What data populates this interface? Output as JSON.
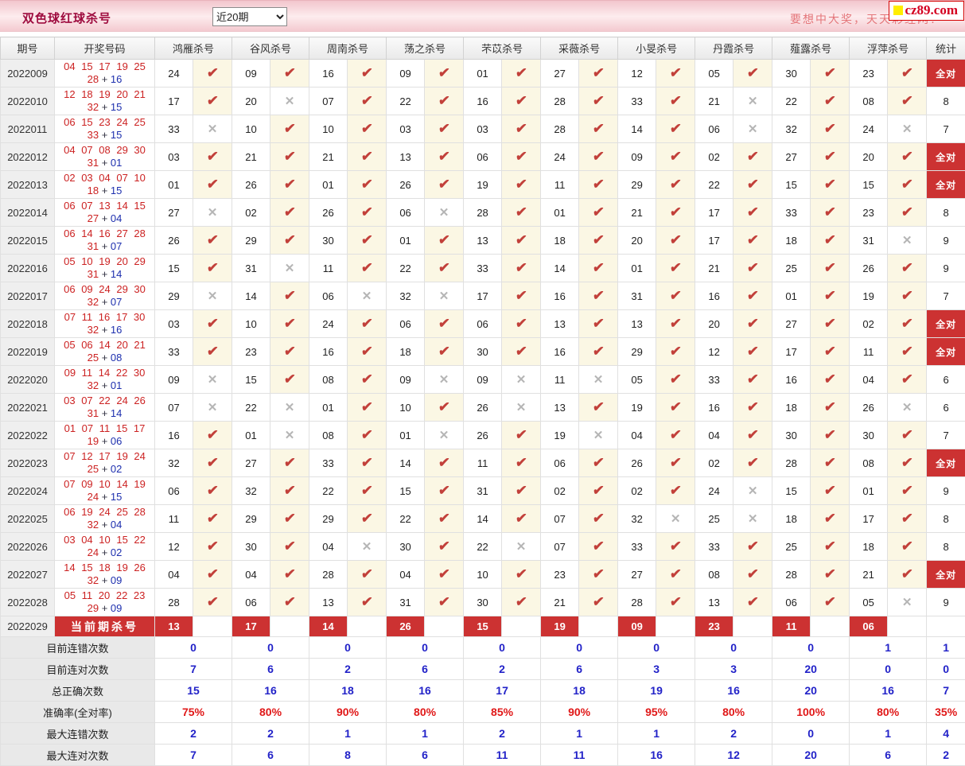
{
  "header_bar": {
    "title": "双色球红球杀号",
    "range_value": "近20期",
    "promo": "要想中大奖，天天彩经网！",
    "logo_text": "cz89.com"
  },
  "icons": {
    "check": "✔",
    "cross": "✕",
    "logo_square": "square"
  },
  "colors": {
    "accent_red": "#cc3232",
    "check": "#c2403a",
    "cross": "#b5b5b5",
    "red_ball": "#cc2222",
    "blue_ball": "#1d2fae",
    "summary_blue": "#2222c8",
    "summary_red": "#e01818"
  },
  "table": {
    "col_headers": {
      "period": "期号",
      "drawn": "开奖号码",
      "stat": "统计"
    },
    "predictors": [
      "鸿雁杀号",
      "谷风杀号",
      "周南杀号",
      "荡之杀号",
      "芣苡杀号",
      "采薇杀号",
      "小旻杀号",
      "丹霞杀号",
      "薤露杀号",
      "浮萍杀号"
    ],
    "all_correct_label": "全对",
    "rows": [
      {
        "period": "2022009",
        "reds": [
          "04",
          "15",
          "17",
          "19",
          "25",
          "28"
        ],
        "blue": "16",
        "kills": [
          [
            "24",
            1
          ],
          [
            "09",
            1
          ],
          [
            "16",
            1
          ],
          [
            "09",
            1
          ],
          [
            "01",
            1
          ],
          [
            "27",
            1
          ],
          [
            "12",
            1
          ],
          [
            "05",
            1
          ],
          [
            "30",
            1
          ],
          [
            "23",
            1
          ]
        ],
        "stat": "全对"
      },
      {
        "period": "2022010",
        "reds": [
          "12",
          "18",
          "19",
          "20",
          "21",
          "32"
        ],
        "blue": "15",
        "kills": [
          [
            "17",
            1
          ],
          [
            "20",
            0
          ],
          [
            "07",
            1
          ],
          [
            "22",
            1
          ],
          [
            "16",
            1
          ],
          [
            "28",
            1
          ],
          [
            "33",
            1
          ],
          [
            "21",
            0
          ],
          [
            "22",
            1
          ],
          [
            "08",
            1
          ]
        ],
        "stat": "8"
      },
      {
        "period": "2022011",
        "reds": [
          "06",
          "15",
          "23",
          "24",
          "25",
          "33"
        ],
        "blue": "15",
        "kills": [
          [
            "33",
            0
          ],
          [
            "10",
            1
          ],
          [
            "10",
            1
          ],
          [
            "03",
            1
          ],
          [
            "03",
            1
          ],
          [
            "28",
            1
          ],
          [
            "14",
            1
          ],
          [
            "06",
            0
          ],
          [
            "32",
            1
          ],
          [
            "24",
            0
          ]
        ],
        "stat": "7"
      },
      {
        "period": "2022012",
        "reds": [
          "04",
          "07",
          "08",
          "29",
          "30",
          "31"
        ],
        "blue": "01",
        "kills": [
          [
            "03",
            1
          ],
          [
            "21",
            1
          ],
          [
            "21",
            1
          ],
          [
            "13",
            1
          ],
          [
            "06",
            1
          ],
          [
            "24",
            1
          ],
          [
            "09",
            1
          ],
          [
            "02",
            1
          ],
          [
            "27",
            1
          ],
          [
            "20",
            1
          ]
        ],
        "stat": "全对"
      },
      {
        "period": "2022013",
        "reds": [
          "02",
          "03",
          "04",
          "07",
          "10",
          "18"
        ],
        "blue": "15",
        "kills": [
          [
            "01",
            1
          ],
          [
            "26",
            1
          ],
          [
            "01",
            1
          ],
          [
            "26",
            1
          ],
          [
            "19",
            1
          ],
          [
            "11",
            1
          ],
          [
            "29",
            1
          ],
          [
            "22",
            1
          ],
          [
            "15",
            1
          ],
          [
            "15",
            1
          ]
        ],
        "stat": "全对"
      },
      {
        "period": "2022014",
        "reds": [
          "06",
          "07",
          "13",
          "14",
          "15",
          "27"
        ],
        "blue": "04",
        "kills": [
          [
            "27",
            0
          ],
          [
            "02",
            1
          ],
          [
            "26",
            1
          ],
          [
            "06",
            0
          ],
          [
            "28",
            1
          ],
          [
            "01",
            1
          ],
          [
            "21",
            1
          ],
          [
            "17",
            1
          ],
          [
            "33",
            1
          ],
          [
            "23",
            1
          ]
        ],
        "stat": "8"
      },
      {
        "period": "2022015",
        "reds": [
          "06",
          "14",
          "16",
          "27",
          "28",
          "31"
        ],
        "blue": "07",
        "kills": [
          [
            "26",
            1
          ],
          [
            "29",
            1
          ],
          [
            "30",
            1
          ],
          [
            "01",
            1
          ],
          [
            "13",
            1
          ],
          [
            "18",
            1
          ],
          [
            "20",
            1
          ],
          [
            "17",
            1
          ],
          [
            "18",
            1
          ],
          [
            "31",
            0
          ]
        ],
        "stat": "9"
      },
      {
        "period": "2022016",
        "reds": [
          "05",
          "10",
          "19",
          "20",
          "29",
          "31"
        ],
        "blue": "14",
        "kills": [
          [
            "15",
            1
          ],
          [
            "31",
            0
          ],
          [
            "11",
            1
          ],
          [
            "22",
            1
          ],
          [
            "33",
            1
          ],
          [
            "14",
            1
          ],
          [
            "01",
            1
          ],
          [
            "21",
            1
          ],
          [
            "25",
            1
          ],
          [
            "26",
            1
          ]
        ],
        "stat": "9"
      },
      {
        "period": "2022017",
        "reds": [
          "06",
          "09",
          "24",
          "29",
          "30",
          "32"
        ],
        "blue": "07",
        "kills": [
          [
            "29",
            0
          ],
          [
            "14",
            1
          ],
          [
            "06",
            0
          ],
          [
            "32",
            0
          ],
          [
            "17",
            1
          ],
          [
            "16",
            1
          ],
          [
            "31",
            1
          ],
          [
            "16",
            1
          ],
          [
            "01",
            1
          ],
          [
            "19",
            1
          ]
        ],
        "stat": "7"
      },
      {
        "period": "2022018",
        "reds": [
          "07",
          "11",
          "16",
          "17",
          "30",
          "32"
        ],
        "blue": "16",
        "kills": [
          [
            "03",
            1
          ],
          [
            "10",
            1
          ],
          [
            "24",
            1
          ],
          [
            "06",
            1
          ],
          [
            "06",
            1
          ],
          [
            "13",
            1
          ],
          [
            "13",
            1
          ],
          [
            "20",
            1
          ],
          [
            "27",
            1
          ],
          [
            "02",
            1
          ]
        ],
        "stat": "全对"
      },
      {
        "period": "2022019",
        "reds": [
          "05",
          "06",
          "14",
          "20",
          "21",
          "25"
        ],
        "blue": "08",
        "kills": [
          [
            "33",
            1
          ],
          [
            "23",
            1
          ],
          [
            "16",
            1
          ],
          [
            "18",
            1
          ],
          [
            "30",
            1
          ],
          [
            "16",
            1
          ],
          [
            "29",
            1
          ],
          [
            "12",
            1
          ],
          [
            "17",
            1
          ],
          [
            "11",
            1
          ]
        ],
        "stat": "全对"
      },
      {
        "period": "2022020",
        "reds": [
          "09",
          "11",
          "14",
          "22",
          "30",
          "32"
        ],
        "blue": "01",
        "kills": [
          [
            "09",
            0
          ],
          [
            "15",
            1
          ],
          [
            "08",
            1
          ],
          [
            "09",
            0
          ],
          [
            "09",
            0
          ],
          [
            "11",
            0
          ],
          [
            "05",
            1
          ],
          [
            "33",
            1
          ],
          [
            "16",
            1
          ],
          [
            "04",
            1
          ]
        ],
        "stat": "6"
      },
      {
        "period": "2022021",
        "reds": [
          "03",
          "07",
          "22",
          "24",
          "26",
          "31"
        ],
        "blue": "14",
        "kills": [
          [
            "07",
            0
          ],
          [
            "22",
            0
          ],
          [
            "01",
            1
          ],
          [
            "10",
            1
          ],
          [
            "26",
            0
          ],
          [
            "13",
            1
          ],
          [
            "19",
            1
          ],
          [
            "16",
            1
          ],
          [
            "18",
            1
          ],
          [
            "26",
            0
          ]
        ],
        "stat": "6"
      },
      {
        "period": "2022022",
        "reds": [
          "01",
          "07",
          "11",
          "15",
          "17",
          "19"
        ],
        "blue": "06",
        "kills": [
          [
            "16",
            1
          ],
          [
            "01",
            0
          ],
          [
            "08",
            1
          ],
          [
            "01",
            0
          ],
          [
            "26",
            1
          ],
          [
            "19",
            0
          ],
          [
            "04",
            1
          ],
          [
            "04",
            1
          ],
          [
            "30",
            1
          ],
          [
            "30",
            1
          ]
        ],
        "stat": "7"
      },
      {
        "period": "2022023",
        "reds": [
          "07",
          "12",
          "17",
          "19",
          "24",
          "25"
        ],
        "blue": "02",
        "kills": [
          [
            "32",
            1
          ],
          [
            "27",
            1
          ],
          [
            "33",
            1
          ],
          [
            "14",
            1
          ],
          [
            "11",
            1
          ],
          [
            "06",
            1
          ],
          [
            "26",
            1
          ],
          [
            "02",
            1
          ],
          [
            "28",
            1
          ],
          [
            "08",
            1
          ]
        ],
        "stat": "全对"
      },
      {
        "period": "2022024",
        "reds": [
          "07",
          "09",
          "10",
          "14",
          "19",
          "24"
        ],
        "blue": "15",
        "kills": [
          [
            "06",
            1
          ],
          [
            "32",
            1
          ],
          [
            "22",
            1
          ],
          [
            "15",
            1
          ],
          [
            "31",
            1
          ],
          [
            "02",
            1
          ],
          [
            "02",
            1
          ],
          [
            "24",
            0
          ],
          [
            "15",
            1
          ],
          [
            "01",
            1
          ]
        ],
        "stat": "9"
      },
      {
        "period": "2022025",
        "reds": [
          "06",
          "19",
          "24",
          "25",
          "28",
          "32"
        ],
        "blue": "04",
        "kills": [
          [
            "11",
            1
          ],
          [
            "29",
            1
          ],
          [
            "29",
            1
          ],
          [
            "22",
            1
          ],
          [
            "14",
            1
          ],
          [
            "07",
            1
          ],
          [
            "32",
            0
          ],
          [
            "25",
            0
          ],
          [
            "18",
            1
          ],
          [
            "17",
            1
          ]
        ],
        "stat": "8"
      },
      {
        "period": "2022026",
        "reds": [
          "03",
          "04",
          "10",
          "15",
          "22",
          "24"
        ],
        "blue": "02",
        "kills": [
          [
            "12",
            1
          ],
          [
            "30",
            1
          ],
          [
            "04",
            0
          ],
          [
            "30",
            1
          ],
          [
            "22",
            0
          ],
          [
            "07",
            1
          ],
          [
            "33",
            1
          ],
          [
            "33",
            1
          ],
          [
            "25",
            1
          ],
          [
            "18",
            1
          ]
        ],
        "stat": "8"
      },
      {
        "period": "2022027",
        "reds": [
          "14",
          "15",
          "18",
          "19",
          "26",
          "32"
        ],
        "blue": "09",
        "kills": [
          [
            "04",
            1
          ],
          [
            "04",
            1
          ],
          [
            "28",
            1
          ],
          [
            "04",
            1
          ],
          [
            "10",
            1
          ],
          [
            "23",
            1
          ],
          [
            "27",
            1
          ],
          [
            "08",
            1
          ],
          [
            "28",
            1
          ],
          [
            "21",
            1
          ]
        ],
        "stat": "全对"
      },
      {
        "period": "2022028",
        "reds": [
          "05",
          "11",
          "20",
          "22",
          "23",
          "29"
        ],
        "blue": "09",
        "kills": [
          [
            "28",
            1
          ],
          [
            "06",
            1
          ],
          [
            "13",
            1
          ],
          [
            "31",
            1
          ],
          [
            "30",
            1
          ],
          [
            "21",
            1
          ],
          [
            "28",
            1
          ],
          [
            "13",
            1
          ],
          [
            "06",
            1
          ],
          [
            "05",
            0
          ]
        ],
        "stat": "9"
      }
    ],
    "current_row": {
      "period": "2022029",
      "label": "当前期杀号",
      "kills": [
        "13",
        "17",
        "14",
        "26",
        "15",
        "19",
        "09",
        "23",
        "11",
        "06"
      ]
    },
    "summary_rows": [
      {
        "label": "目前连错次数",
        "values": [
          "0",
          "0",
          "0",
          "0",
          "0",
          "0",
          "0",
          "0",
          "0",
          "1",
          "1"
        ],
        "style": "blue"
      },
      {
        "label": "目前连对次数",
        "values": [
          "7",
          "6",
          "2",
          "6",
          "2",
          "6",
          "3",
          "3",
          "20",
          "0",
          "0"
        ],
        "style": "blue"
      },
      {
        "label": "总正确次数",
        "values": [
          "15",
          "16",
          "18",
          "16",
          "17",
          "18",
          "19",
          "16",
          "20",
          "16",
          "7"
        ],
        "style": "blue"
      },
      {
        "label": "准确率(全对率)",
        "values": [
          "75%",
          "80%",
          "90%",
          "80%",
          "85%",
          "90%",
          "95%",
          "80%",
          "100%",
          "80%",
          "35%"
        ],
        "style": "red"
      },
      {
        "label": "最大连错次数",
        "values": [
          "2",
          "2",
          "1",
          "1",
          "2",
          "1",
          "1",
          "2",
          "0",
          "1",
          "4"
        ],
        "style": "blue"
      },
      {
        "label": "最大连对次数",
        "values": [
          "7",
          "6",
          "8",
          "6",
          "11",
          "11",
          "16",
          "12",
          "20",
          "6",
          "2"
        ],
        "style": "blue"
      }
    ]
  }
}
